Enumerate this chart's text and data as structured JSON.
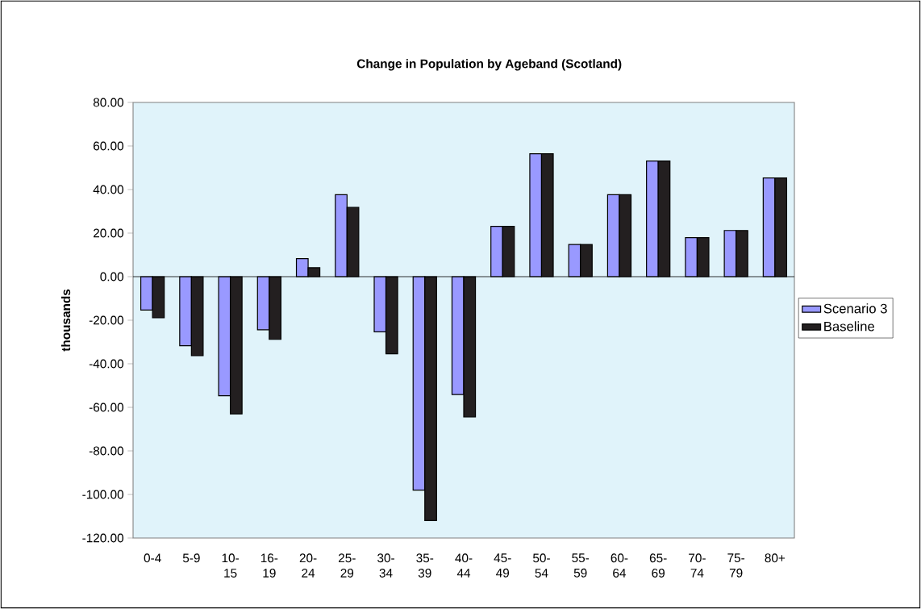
{
  "chart_data": {
    "type": "bar",
    "title": "Change in Population by Ageband (Scotland)",
    "ylabel": "thousands",
    "categories": [
      "0-4",
      "5-9",
      "10-15",
      "16-19",
      "20-24",
      "25-29",
      "30-34",
      "35-39",
      "40-44",
      "45-49",
      "50-54",
      "55-59",
      "60-64",
      "65-69",
      "70-74",
      "75-79",
      "80+"
    ],
    "series": [
      {
        "name": "Scenario 3",
        "color": "#9999ff",
        "values": [
          -15.3,
          -31.7,
          -54.7,
          -24.4,
          8.3,
          37.6,
          -25.3,
          -98.0,
          -54.1,
          23.1,
          56.4,
          14.8,
          37.6,
          53.1,
          17.9,
          21.2,
          45.3
        ]
      },
      {
        "name": "Baseline",
        "color": "#231f20",
        "values": [
          -18.9,
          -36.3,
          -63.0,
          -28.8,
          4.1,
          31.8,
          -35.4,
          -112.0,
          -64.4,
          23.1,
          56.4,
          14.8,
          37.6,
          53.1,
          17.9,
          21.2,
          45.3
        ]
      }
    ],
    "ylim": [
      -120,
      80
    ],
    "yticks": [
      {
        "value": -120,
        "label": "-120.00"
      },
      {
        "value": -100,
        "label": "-100.00"
      },
      {
        "value": -80,
        "label": "-80.00"
      },
      {
        "value": -60,
        "label": "-60.00"
      },
      {
        "value": -40,
        "label": "-40.00"
      },
      {
        "value": -20,
        "label": "-20.00"
      },
      {
        "value": 0,
        "label": "0.00"
      },
      {
        "value": 20,
        "label": "20.00"
      },
      {
        "value": 40,
        "label": "40.00"
      },
      {
        "value": 60,
        "label": "60.00"
      },
      {
        "value": 80,
        "label": "80.00"
      }
    ],
    "legend": "right"
  }
}
